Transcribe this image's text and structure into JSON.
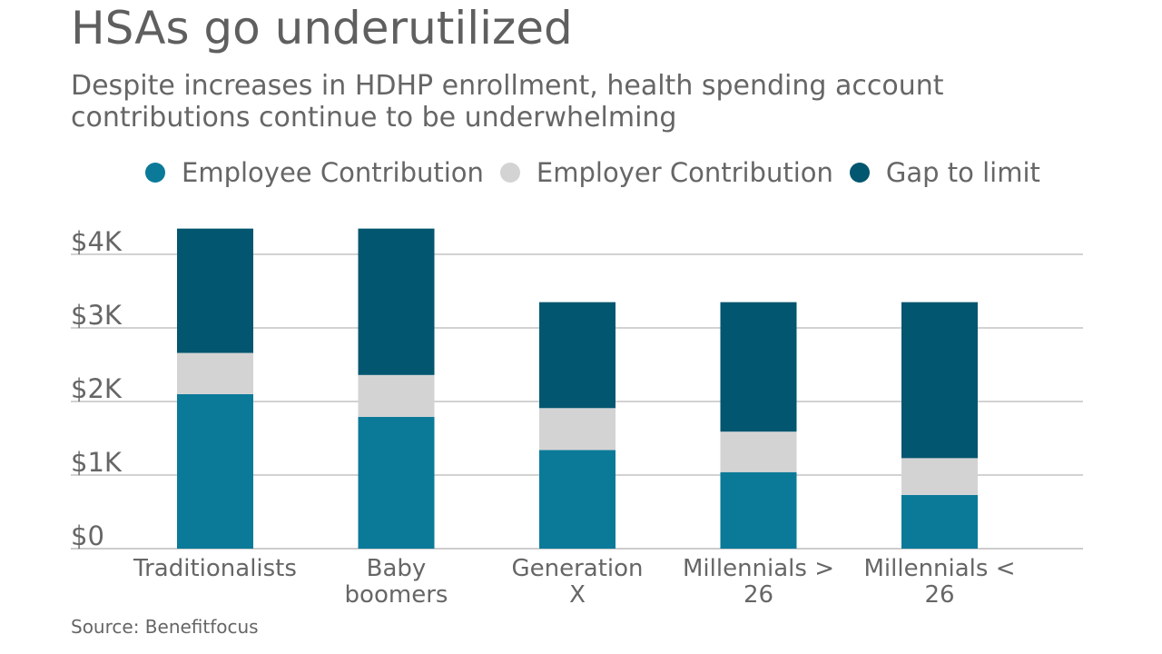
{
  "title": "HSAs go underutilized",
  "subtitle": "Despite increases in HDHP enrollment, health spending account contributions continue to be underwhelming",
  "source": "Source: Benefitfocus",
  "legend": [
    {
      "label": "Employee Contribution",
      "color": "#0b7a99"
    },
    {
      "label": "Employer Contribution",
      "color": "#d4d3d4"
    },
    {
      "label": "Gap to limit",
      "color": "#03566f"
    }
  ],
  "chart_data": {
    "type": "bar",
    "stacked": true,
    "title": "HSAs go underutilized",
    "xlabel": "",
    "ylabel": "",
    "ylim": [
      0,
      4000
    ],
    "yticks": [
      0,
      1000,
      2000,
      3000,
      4000
    ],
    "ytick_labels": [
      "$0",
      "$1K",
      "$2K",
      "$3K",
      "$4K"
    ],
    "grid": true,
    "legend_position": "top",
    "categories": [
      [
        "Traditionalists"
      ],
      [
        "Baby",
        "boomers"
      ],
      [
        "Generation",
        "X"
      ],
      [
        "Millennials >",
        "26"
      ],
      [
        "Millennials <",
        "26"
      ]
    ],
    "series": [
      {
        "name": "Employee Contribution",
        "color": "#0b7a99",
        "values": [
          2100,
          1790,
          1340,
          1040,
          730
        ]
      },
      {
        "name": "Employer Contribution",
        "color": "#d4d3d4",
        "values": [
          560,
          570,
          570,
          550,
          500
        ]
      },
      {
        "name": "Gap to limit",
        "color": "#03566f",
        "values": [
          1690,
          1990,
          1440,
          1760,
          2120
        ]
      }
    ]
  }
}
